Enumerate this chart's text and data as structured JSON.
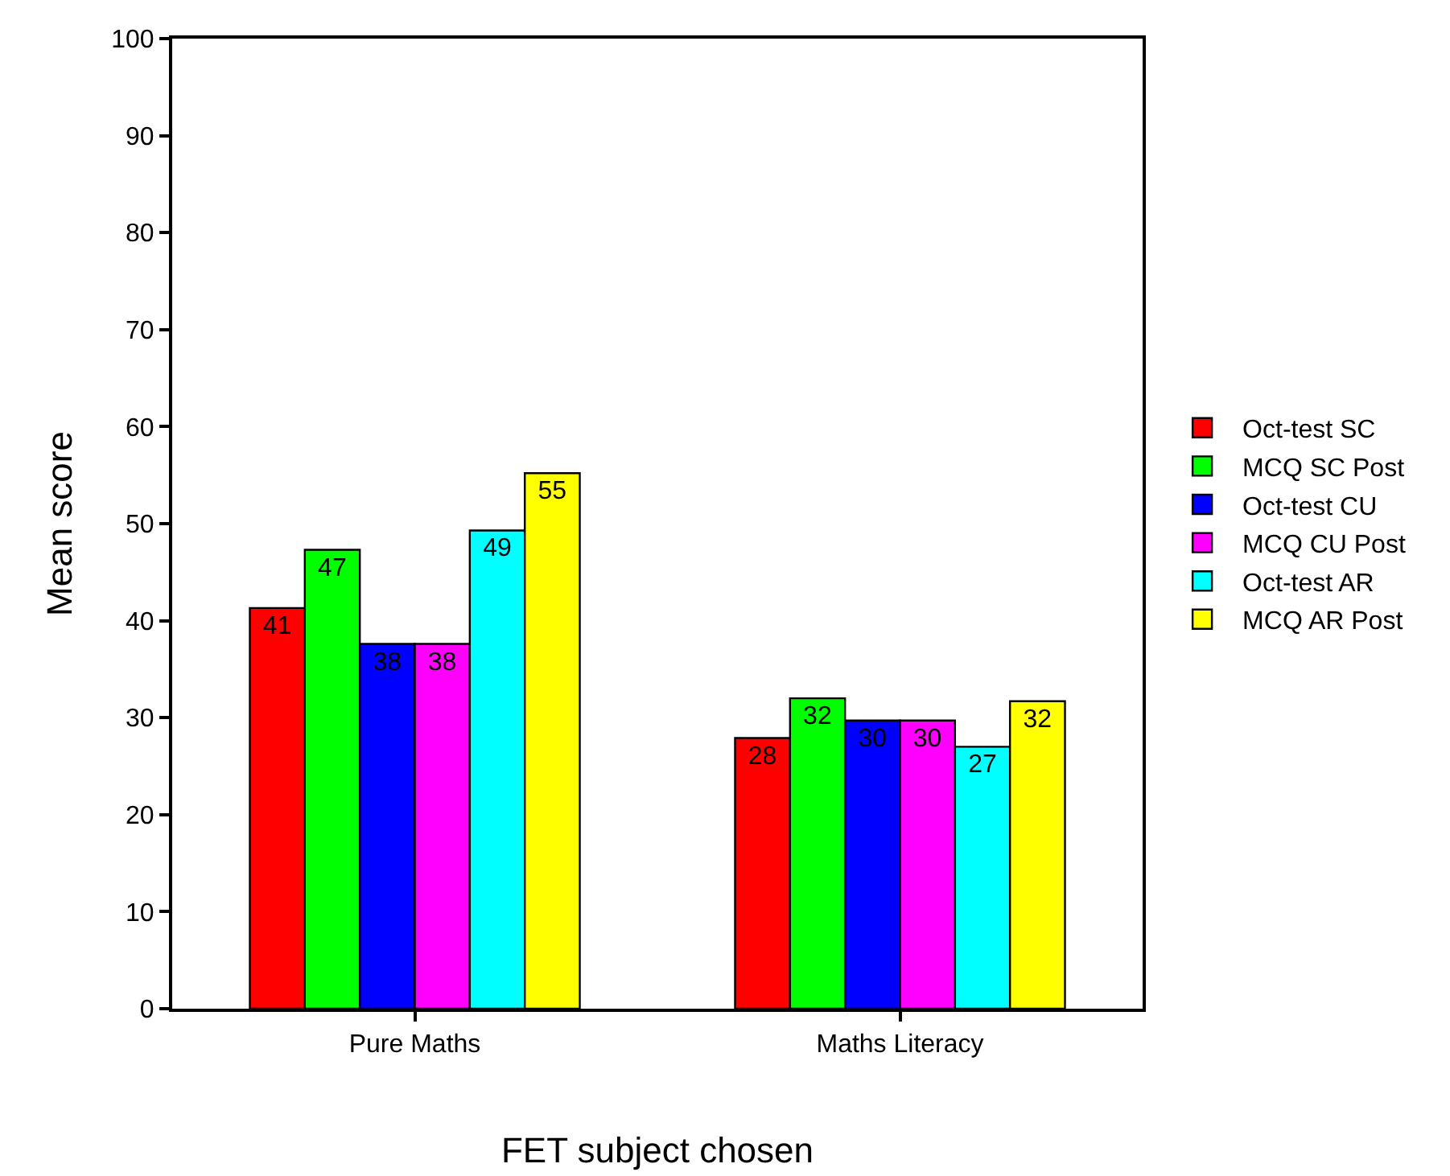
{
  "chart_data": {
    "type": "bar",
    "xlabel": "FET subject chosen",
    "ylabel": "Mean score",
    "categories": [
      "Pure Maths",
      "Maths Literacy"
    ],
    "series": [
      {
        "name": "Oct-test SC",
        "color": "#ff0000",
        "values": [
          41.3,
          27.9
        ],
        "value_labels": [
          "41",
          "28"
        ]
      },
      {
        "name": "MCQ SC Post",
        "color": "#00ff00",
        "values": [
          47.3,
          32.0
        ],
        "value_labels": [
          "47",
          "32"
        ]
      },
      {
        "name": "Oct-test CU",
        "color": "#0000ff",
        "values": [
          37.6,
          29.7
        ],
        "value_labels": [
          "38",
          "30"
        ]
      },
      {
        "name": "MCQ CU Post",
        "color": "#ff00ff",
        "values": [
          37.6,
          29.7
        ],
        "value_labels": [
          "38",
          "30"
        ]
      },
      {
        "name": "Oct-test AR",
        "color": "#00ffff",
        "values": [
          49.3,
          27.0
        ],
        "value_labels": [
          "49",
          "27"
        ]
      },
      {
        "name": "MCQ AR Post",
        "color": "#ffff00",
        "values": [
          55.2,
          31.7
        ],
        "value_labels": [
          "55",
          "32"
        ]
      }
    ],
    "ylim": [
      0,
      100
    ],
    "yticks": [
      0,
      10,
      20,
      30,
      40,
      50,
      60,
      70,
      80,
      90,
      100
    ],
    "grid": false,
    "legend": "right"
  }
}
